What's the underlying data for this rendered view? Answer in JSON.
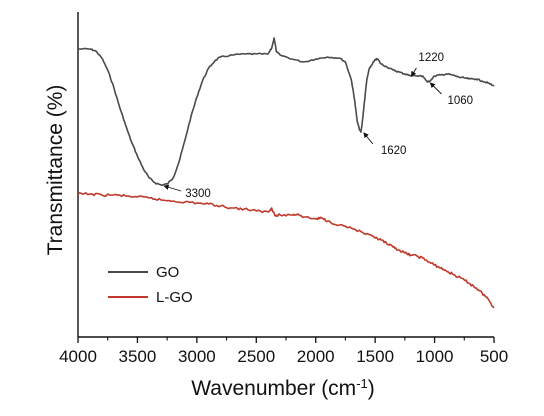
{
  "chart_data": {
    "type": "line",
    "title": "",
    "xlabel": "Wavenumber (cm",
    "xlabel_sup": "-1",
    "xlabel_close": ")",
    "ylabel": "Transmittance (%)",
    "xlim": [
      4000,
      500
    ],
    "x_reversed": true,
    "y_ticks_shown": false,
    "xticks": [
      "4000",
      "3500",
      "3000",
      "2500",
      "2000",
      "1500",
      "1000",
      "500"
    ],
    "grid": false,
    "legend": "bottom-left",
    "series": [
      {
        "name": "GO",
        "color": "#4a4a4a",
        "points": [
          [
            4000,
            37
          ],
          [
            3900,
            37
          ],
          [
            3850,
            39
          ],
          [
            3800,
            46
          ],
          [
            3750,
            58
          ],
          [
            3700,
            75
          ],
          [
            3650,
            95
          ],
          [
            3600,
            113
          ],
          [
            3550,
            130
          ],
          [
            3500,
            144
          ],
          [
            3450,
            157
          ],
          [
            3400,
            166
          ],
          [
            3350,
            171
          ],
          [
            3300,
            173
          ],
          [
            3250,
            172
          ],
          [
            3200,
            166
          ],
          [
            3150,
            150
          ],
          [
            3100,
            128
          ],
          [
            3050,
            105
          ],
          [
            3000,
            85
          ],
          [
            2950,
            68
          ],
          [
            2900,
            56
          ],
          [
            2850,
            49
          ],
          [
            2800,
            45
          ],
          [
            2700,
            43
          ],
          [
            2600,
            42
          ],
          [
            2500,
            42
          ],
          [
            2400,
            42
          ],
          [
            2370,
            36
          ],
          [
            2350,
            26
          ],
          [
            2330,
            40
          ],
          [
            2300,
            43
          ],
          [
            2200,
            47
          ],
          [
            2100,
            50
          ],
          [
            2000,
            47
          ],
          [
            1900,
            45
          ],
          [
            1800,
            46
          ],
          [
            1750,
            50
          ],
          [
            1700,
            68
          ],
          [
            1670,
            90
          ],
          [
            1650,
            110
          ],
          [
            1630,
            118
          ],
          [
            1620,
            120
          ],
          [
            1610,
            112
          ],
          [
            1590,
            90
          ],
          [
            1570,
            68
          ],
          [
            1550,
            57
          ],
          [
            1520,
            51
          ],
          [
            1500,
            48
          ],
          [
            1480,
            47
          ],
          [
            1450,
            52
          ],
          [
            1400,
            55
          ],
          [
            1350,
            58
          ],
          [
            1300,
            60
          ],
          [
            1250,
            62
          ],
          [
            1220,
            63
          ],
          [
            1150,
            64
          ],
          [
            1100,
            64
          ],
          [
            1060,
            70
          ],
          [
            1040,
            69
          ],
          [
            1000,
            64
          ],
          [
            950,
            63
          ],
          [
            900,
            62
          ],
          [
            850,
            63
          ],
          [
            800,
            65
          ],
          [
            750,
            66
          ],
          [
            700,
            67
          ],
          [
            650,
            67
          ],
          [
            600,
            69
          ],
          [
            550,
            71
          ],
          [
            500,
            74
          ]
        ]
      },
      {
        "name": "L-GO",
        "color": "#c0392b",
        "points": [
          [
            4000,
            182
          ],
          [
            3900,
            182
          ],
          [
            3800,
            183
          ],
          [
            3700,
            183
          ],
          [
            3600,
            184
          ],
          [
            3500,
            185
          ],
          [
            3400,
            186
          ],
          [
            3300,
            188
          ],
          [
            3200,
            189
          ],
          [
            3100,
            190
          ],
          [
            3000,
            191
          ],
          [
            2900,
            192
          ],
          [
            2800,
            194
          ],
          [
            2700,
            196
          ],
          [
            2600,
            197
          ],
          [
            2500,
            199
          ],
          [
            2400,
            200
          ],
          [
            2370,
            196
          ],
          [
            2340,
            204
          ],
          [
            2300,
            203
          ],
          [
            2200,
            203
          ],
          [
            2150,
            202
          ],
          [
            2100,
            205
          ],
          [
            2000,
            207
          ],
          [
            1950,
            206
          ],
          [
            1900,
            209
          ],
          [
            1800,
            213
          ],
          [
            1700,
            216
          ],
          [
            1600,
            221
          ],
          [
            1500,
            226
          ],
          [
            1450,
            228
          ],
          [
            1400,
            232
          ],
          [
            1350,
            235
          ],
          [
            1300,
            238
          ],
          [
            1250,
            241
          ],
          [
            1200,
            243
          ],
          [
            1150,
            244
          ],
          [
            1100,
            246
          ],
          [
            1050,
            250
          ],
          [
            1000,
            253
          ],
          [
            950,
            256
          ],
          [
            900,
            259
          ],
          [
            850,
            262
          ],
          [
            800,
            265
          ],
          [
            750,
            268
          ],
          [
            700,
            272
          ],
          [
            650,
            276
          ],
          [
            600,
            281
          ],
          [
            550,
            287
          ],
          [
            500,
            296
          ]
        ]
      }
    ],
    "annotations": [
      {
        "text": "3300",
        "x": 3300
      },
      {
        "text": "1620",
        "x": 1620
      },
      {
        "text": "1220",
        "x": 1220
      },
      {
        "text": "1060",
        "x": 1060
      }
    ]
  }
}
